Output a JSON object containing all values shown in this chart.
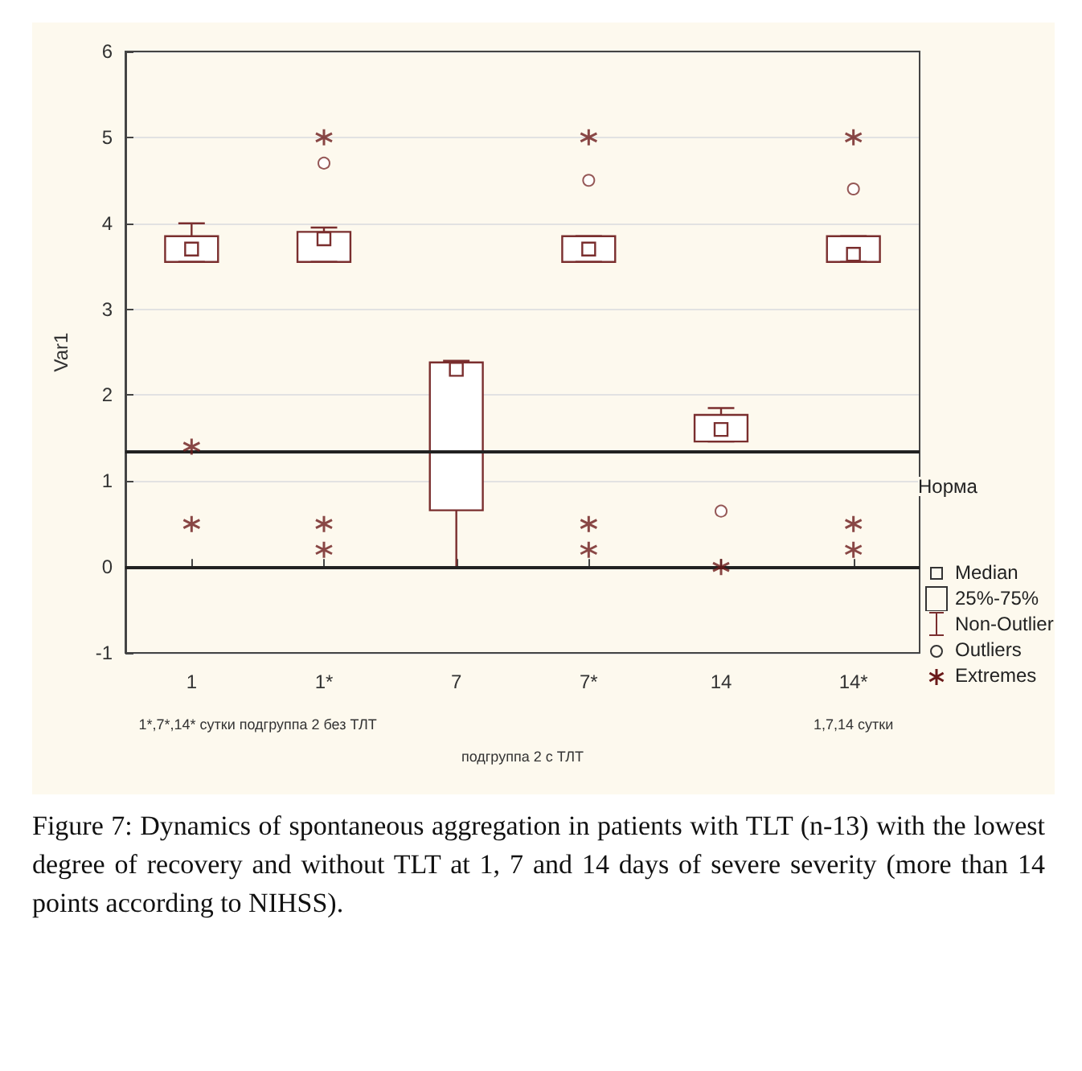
{
  "chart_data": {
    "type": "box",
    "ylabel": "Var1",
    "categories": [
      "1",
      "1*",
      "7",
      "7*",
      "14",
      "14*"
    ],
    "ylim": [
      -1,
      6
    ],
    "yticks": [
      -1,
      0,
      1,
      2,
      3,
      4,
      5,
      6
    ],
    "grid": "y",
    "legend": "bottom right",
    "series": [
      {
        "color": "#7a2e2e",
        "boxes": [
          {
            "low": 3.55,
            "q1": 3.55,
            "median": 3.7,
            "q3": 3.85,
            "high": 4.0
          },
          {
            "low": 3.55,
            "q1": 3.55,
            "median": 3.82,
            "q3": 3.9,
            "high": 3.95,
            "outliers": [
              4.7
            ]
          },
          {
            "low": 0,
            "q1": 0.66,
            "median": 2.3,
            "q3": 2.38,
            "high": 2.4
          },
          {
            "low": 3.55,
            "q1": 3.55,
            "median": 3.7,
            "q3": 3.85,
            "high": 3.85,
            "outliers": [
              4.5
            ]
          },
          {
            "low": 1.46,
            "q1": 1.46,
            "median": 1.6,
            "q3": 1.77,
            "high": 1.85,
            "outliers": [
              0.65
            ]
          },
          {
            "low": 3.55,
            "q1": 3.55,
            "median": 3.64,
            "q3": 3.85,
            "high": 3.85,
            "outliers": [
              4.4
            ]
          }
        ]
      },
      {
        "type": "scatter",
        "name": "Extremes",
        "color": "#6b1a1a",
        "marker": "cross",
        "x": [
          "1",
          "1",
          "1*",
          "1*",
          "1*",
          "7*",
          "7*",
          "7*",
          "14",
          "14*",
          "14*",
          "14*"
        ],
        "values": [
          1.4,
          0.5,
          5,
          0.5,
          0.2,
          5,
          0.5,
          0.2,
          0,
          5,
          0.5,
          0.2
        ]
      }
    ],
    "ref_lines": [
      {
        "axis": "y",
        "value": 1.35,
        "label": "Норма",
        "color": "#222222"
      },
      {
        "axis": "y",
        "value": 0,
        "label": null,
        "color": "#222222"
      }
    ],
    "annotations": [
      "1*,7*,14* сутки подгруппа 2 без ТЛТ",
      "подгруппа 2 с ТЛТ",
      "1,7,14 сутки",
      "Median",
      "25%-75%",
      "Non-Outlier",
      "Outliers",
      "Figure 7: Dynamics of spontaneous aggregation in patients with TLT (n-13) with the lowest degree of recovery and without TLT at 1, 7 and 14 days of severe severity (more than 14 points according to NIHSS)."
    ]
  }
}
